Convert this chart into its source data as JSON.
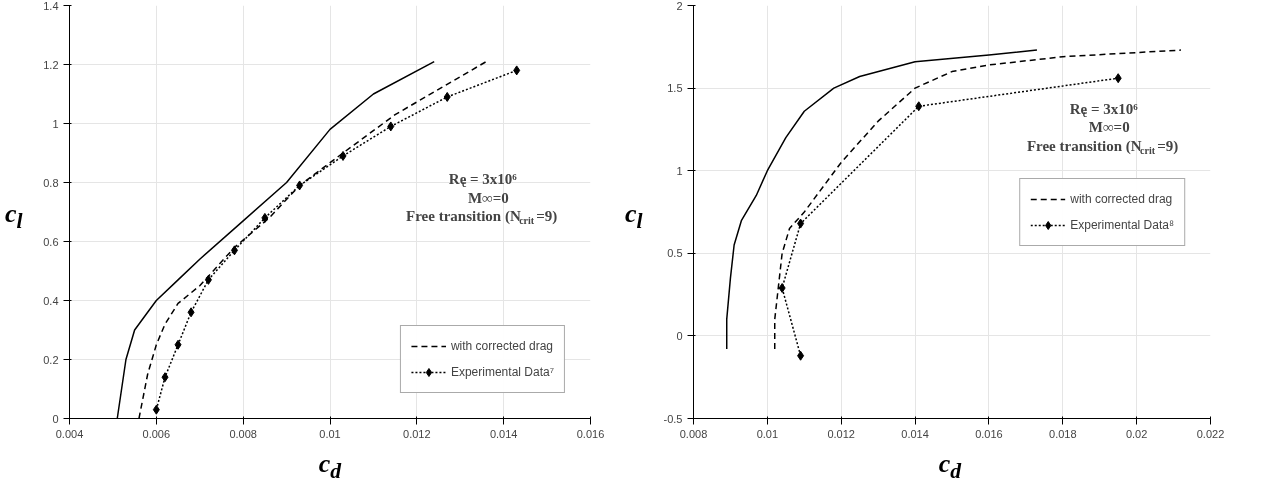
{
  "chart_data": [
    {
      "type": "line",
      "xlabel": "c$_{d}$",
      "ylabel": "c$_{l}$",
      "xlim": [
        0.004,
        0.016
      ],
      "ylim": [
        0,
        1.4
      ],
      "xticks": [
        0.004,
        0.006,
        0.008,
        0.01,
        0.012,
        0.014,
        0.016
      ],
      "yticks": [
        0,
        0.2,
        0.4,
        0.6,
        0.8,
        1,
        1.2,
        1.4
      ],
      "grid": true,
      "legend": "bottom right",
      "annotations": [
        "Re$_{c}$ = 3x10⁶",
        "M∞=0",
        "Free transition (N$_{crit}$=9)"
      ],
      "series": [
        {
          "color": "#000000",
          "line_style": "solid",
          "marker": "none",
          "x": [
            0.0051,
            0.0053,
            0.0055,
            0.0058,
            0.006,
            0.0065,
            0.007,
            0.008,
            0.009,
            0.01,
            0.011,
            0.0124
          ],
          "values": [
            0,
            0.2,
            0.3,
            0.36,
            0.4,
            0.47,
            0.54,
            0.67,
            0.8,
            0.98,
            1.1,
            1.21
          ]
        },
        {
          "name": "with corrected drag",
          "color": "#000000",
          "line_style": "dashed",
          "marker": "none",
          "x": [
            0.0056,
            0.0058,
            0.006,
            0.0062,
            0.0065,
            0.007,
            0.0078,
            0.0086,
            0.0093,
            0.0103,
            0.0115,
            0.0136
          ],
          "values": [
            0,
            0.15,
            0.25,
            0.32,
            0.39,
            0.45,
            0.58,
            0.68,
            0.79,
            0.9,
            1.03,
            1.21
          ]
        },
        {
          "name": "Experimental Data⁷",
          "color": "#000000",
          "line_style": "dotted",
          "marker": "diamond",
          "x": [
            0.006,
            0.0062,
            0.0065,
            0.0068,
            0.0072,
            0.0078,
            0.0085,
            0.0093,
            0.0103,
            0.0114,
            0.0127,
            0.0143
          ],
          "values": [
            0.03,
            0.14,
            0.25,
            0.36,
            0.47,
            0.57,
            0.68,
            0.79,
            0.89,
            0.99,
            1.09,
            1.18
          ]
        }
      ]
    },
    {
      "type": "line",
      "xlabel": "c$_{d}$",
      "ylabel": "c$_{l}$",
      "xlim": [
        0.008,
        0.022
      ],
      "ylim": [
        -0.5,
        2
      ],
      "xticks": [
        0.008,
        0.01,
        0.012,
        0.014,
        0.016,
        0.018,
        0.02,
        0.022
      ],
      "yticks": [
        -0.5,
        0,
        0.5,
        1,
        1.5,
        2
      ],
      "grid": true,
      "legend": "right",
      "annotations": [
        "Re$_{c}$ = 3x10⁶",
        "M∞=0",
        "Free transition (N$_{crit}$=9)"
      ],
      "series": [
        {
          "color": "#000000",
          "line_style": "solid",
          "marker": "none",
          "x": [
            0.0089,
            0.0089,
            0.009,
            0.0091,
            0.0093,
            0.0097,
            0.01,
            0.0105,
            0.011,
            0.0118,
            0.0125,
            0.014,
            0.016,
            0.0173
          ],
          "values": [
            -0.08,
            0.1,
            0.35,
            0.55,
            0.7,
            0.85,
            1.0,
            1.2,
            1.36,
            1.5,
            1.57,
            1.66,
            1.7,
            1.73
          ]
        },
        {
          "name": "with corrected drag",
          "color": "#000000",
          "line_style": "dashed",
          "marker": "none",
          "x": [
            0.0102,
            0.0102,
            0.0103,
            0.0104,
            0.0106,
            0.011,
            0.0115,
            0.012,
            0.013,
            0.014,
            0.015,
            0.016,
            0.018,
            0.0212
          ],
          "values": [
            -0.08,
            0.1,
            0.3,
            0.5,
            0.65,
            0.75,
            0.9,
            1.05,
            1.3,
            1.5,
            1.6,
            1.64,
            1.69,
            1.73
          ]
        },
        {
          "name": "Experimental Data⁸",
          "color": "#000000",
          "line_style": "dotted",
          "marker": "diamond",
          "x": [
            0.0109,
            0.0104,
            0.0109,
            0.0141,
            0.0195
          ],
          "values": [
            -0.12,
            0.29,
            0.68,
            1.39,
            1.56
          ]
        }
      ]
    }
  ]
}
